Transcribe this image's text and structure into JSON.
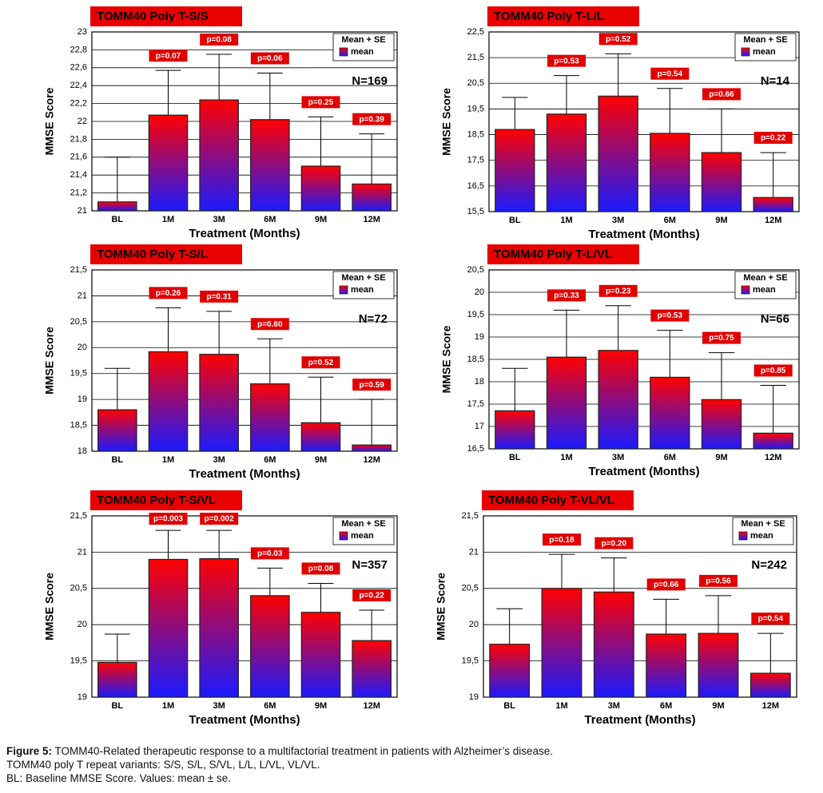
{
  "chart_data": [
    {
      "type": "bar",
      "title": "TOMM40 Poly T-S/S",
      "xlabel": "Treatment (Months)",
      "ylabel": "MMSE Score",
      "categories": [
        "BL",
        "1M",
        "3M",
        "6M",
        "9M",
        "12M"
      ],
      "series": [
        {
          "name": "mean",
          "colors": [
            "#ff0000",
            "#1a1aff"
          ],
          "values": [
            21.1,
            22.07,
            22.24,
            22.02,
            21.5,
            21.3
          ],
          "errors": [
            0.5,
            0.5,
            0.51,
            0.52,
            0.55,
            0.56
          ]
        }
      ],
      "annotations": [
        null,
        "p=0.07",
        "p=0.08",
        "p=0.06",
        "p=0.25",
        "p=0.39"
      ],
      "legend_title": "Mean + SE",
      "n_label": "N=169",
      "ylim": [
        21,
        23
      ],
      "yticks": [
        21,
        {
          "value": 21.2,
          "label": "21,2"
        },
        {
          "value": 21.4,
          "label": "21,4"
        },
        {
          "value": 21.6,
          "label": "21,6"
        },
        {
          "value": 21.8,
          "label": "21,8"
        },
        22,
        {
          "value": 22.2,
          "label": "22,2"
        },
        {
          "value": 22.4,
          "label": "22,4"
        },
        {
          "value": 22.6,
          "label": "22,6"
        },
        {
          "value": 22.8,
          "label": "22,8"
        },
        23
      ],
      "grid": true
    },
    {
      "type": "bar",
      "title": "TOMM40 Poly T-L/L",
      "xlabel": "Treatment (Months)",
      "ylabel": "MMSE Score",
      "categories": [
        "BL",
        "1M",
        "3M",
        "6M",
        "9M",
        "12M"
      ],
      "series": [
        {
          "name": "mean",
          "colors": [
            "#ff0000",
            "#1a1aff"
          ],
          "values": [
            18.7,
            19.3,
            20.0,
            18.55,
            17.8,
            16.05
          ],
          "errors": [
            1.25,
            1.5,
            1.65,
            1.75,
            1.7,
            1.75
          ]
        }
      ],
      "annotations": [
        null,
        "p=0.53",
        "p=0.52",
        "p=0.54",
        "p=0.66",
        "p=0.22"
      ],
      "legend_title": "Mean + SE",
      "n_label": "N=14",
      "ylim": [
        15.5,
        22.5
      ],
      "yticks": [
        {
          "value": 15.5,
          "label": "15,5"
        },
        {
          "value": 16.5,
          "label": "16,5"
        },
        {
          "value": 17.5,
          "label": "17,5"
        },
        {
          "value": 18.5,
          "label": "18,5"
        },
        {
          "value": 19.5,
          "label": "19,5"
        },
        {
          "value": 20.5,
          "label": "20,5"
        },
        {
          "value": 21.5,
          "label": "21,5"
        },
        {
          "value": 22.5,
          "label": "22,5"
        }
      ],
      "grid": true
    },
    {
      "type": "bar",
      "title": "TOMM40 Poly T-S/L",
      "xlabel": "Treatment (Months)",
      "ylabel": "MMSE Score",
      "categories": [
        "BL",
        "1M",
        "3M",
        "6M",
        "9M",
        "12M"
      ],
      "series": [
        {
          "name": "mean",
          "colors": [
            "#ff0000",
            "#1a1aff"
          ],
          "values": [
            18.8,
            19.92,
            19.87,
            19.3,
            18.55,
            18.12
          ],
          "errors": [
            0.8,
            0.85,
            0.83,
            0.87,
            0.88,
            0.88
          ]
        }
      ],
      "annotations": [
        null,
        "p=0.26",
        "p=0.31",
        "p=0.60",
        "p=0.52",
        "p=0.59"
      ],
      "legend_title": "Mean + SE",
      "n_label": "N=72",
      "ylim": [
        18,
        21.5
      ],
      "yticks": [
        18,
        {
          "value": 18.5,
          "label": "18,5"
        },
        19,
        {
          "value": 19.5,
          "label": "19,5"
        },
        20,
        {
          "value": 20.5,
          "label": "20,5"
        },
        21,
        {
          "value": 21.5,
          "label": "21,5"
        }
      ],
      "grid": true
    },
    {
      "type": "bar",
      "title": "TOMM40 Poly T-L/VL",
      "xlabel": "Treatment (Months)",
      "ylabel": "MMSE Score",
      "categories": [
        "BL",
        "1M",
        "3M",
        "6M",
        "9M",
        "12M"
      ],
      "series": [
        {
          "name": "mean",
          "colors": [
            "#ff0000",
            "#1a1aff"
          ],
          "values": [
            17.35,
            18.55,
            18.7,
            18.1,
            17.6,
            16.85
          ],
          "errors": [
            0.95,
            1.05,
            1.0,
            1.05,
            1.05,
            1.07
          ]
        }
      ],
      "annotations": [
        null,
        "p=0.33",
        "p=0.23",
        "p=0.53",
        "p=0.75",
        "p=0.85"
      ],
      "legend_title": "Mean + SE",
      "n_label": "N=66",
      "ylim": [
        16.5,
        20.5
      ],
      "yticks": [
        {
          "value": 16.5,
          "label": "16,5"
        },
        17,
        {
          "value": 17.5,
          "label": "17,5"
        },
        18,
        {
          "value": 18.5,
          "label": "18,5"
        },
        19,
        {
          "value": 19.5,
          "label": "19,5"
        },
        20,
        {
          "value": 20.5,
          "label": "20,5"
        }
      ],
      "grid": true
    },
    {
      "type": "bar",
      "title": "TOMM40 Poly T-S/VL",
      "xlabel": "Treatment (Months)",
      "ylabel": "MMSE Score",
      "categories": [
        "BL",
        "1M",
        "3M",
        "6M",
        "9M",
        "12M"
      ],
      "series": [
        {
          "name": "mean",
          "colors": [
            "#ff0000",
            "#1a1aff"
          ],
          "values": [
            19.48,
            20.9,
            20.91,
            20.4,
            20.17,
            19.78
          ],
          "errors": [
            0.39,
            0.4,
            0.39,
            0.38,
            0.4,
            0.42
          ]
        }
      ],
      "annotations": [
        null,
        "p=0.003",
        "p=0.002",
        "p=0.03",
        "p=0.08",
        "p=0.22"
      ],
      "legend_title": "Mean + SE",
      "n_label": "N=357",
      "ylim": [
        19,
        21.5
      ],
      "yticks": [
        19,
        {
          "value": 19.5,
          "label": "19,5"
        },
        20,
        {
          "value": 20.5,
          "label": "20,5"
        },
        21,
        {
          "value": 21.5,
          "label": "21,5"
        }
      ],
      "grid": true
    },
    {
      "type": "bar",
      "title": "TOMM40 Poly T-VL/VL",
      "xlabel": "Treatment (Months)",
      "ylabel": "MMSE Score",
      "categories": [
        "BL",
        "1M",
        "3M",
        "6M",
        "9M",
        "12M"
      ],
      "series": [
        {
          "name": "mean",
          "colors": [
            "#ff0000",
            "#1a1aff"
          ],
          "values": [
            19.73,
            20.5,
            20.45,
            19.87,
            19.88,
            19.33
          ],
          "errors": [
            0.49,
            0.47,
            0.47,
            0.48,
            0.52,
            0.55
          ]
        }
      ],
      "annotations": [
        null,
        "p=0.18",
        "p=0.20",
        "p=0.66",
        "p=0.56",
        "p=0.54"
      ],
      "legend_title": "Mean + SE",
      "n_label": "N=242",
      "ylim": [
        19,
        21.5
      ],
      "yticks": [
        19,
        {
          "value": 19.5,
          "label": "19,5"
        },
        20,
        {
          "value": 20.5,
          "label": "20,5"
        },
        21,
        {
          "value": 21.5,
          "label": "21,5"
        }
      ],
      "grid": true
    }
  ],
  "caption": {
    "label": "Figure 5:",
    "text": "TOMM40-Related therapeutic response to a multifactorial treatment in patients with Alzheimer’s disease.",
    "lines": [
      "TOMM40 poly T repeat variants: S/S, S/L, S/VL, L/L, L/VL, VL/VL.",
      "BL: Baseline MMSE Score. Values: mean ± se."
    ]
  }
}
